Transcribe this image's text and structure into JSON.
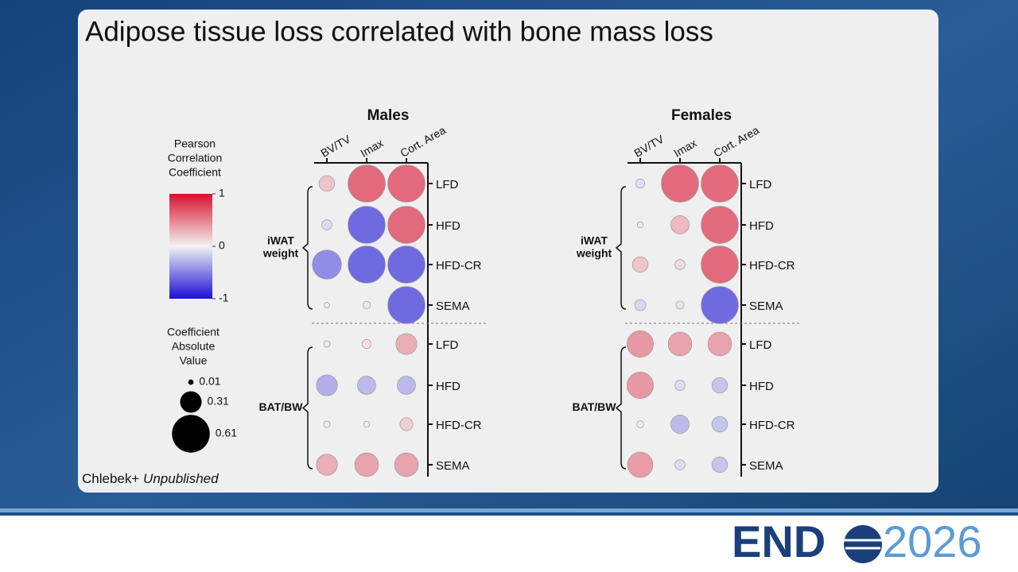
{
  "title": "Adipose tissue loss correlated with bone mass loss",
  "footnote": {
    "author": "Chlebek+",
    "status": "Unpublished"
  },
  "logo": {
    "left": "END",
    "right": "2026"
  },
  "legend": {
    "colorbar": {
      "title": [
        "Pearson",
        "Correlation",
        "Coefficient"
      ],
      "lim": [
        -1,
        1
      ],
      "ticks": [
        1,
        0,
        -1
      ],
      "colors": [
        "#1a0fd6",
        "#f2f2f2",
        "#d8102e"
      ]
    },
    "size": {
      "title": [
        "Coefficient",
        "Absolute",
        "Value"
      ],
      "values": [
        0.01,
        0.31,
        0.61
      ]
    }
  },
  "chart_data": [
    {
      "type": "bubble",
      "title": "Males",
      "columns": [
        "BV/TV",
        "Imax",
        "Cort. Area"
      ],
      "rows": [
        "LFD",
        "HFD",
        "HFD-CR",
        "SEMA"
      ],
      "groups": [
        {
          "label": [
            "iWAT",
            "weight"
          ],
          "values": [
            [
              0.2,
              0.6,
              0.6
            ],
            [
              -0.1,
              -0.6,
              0.6
            ],
            [
              -0.45,
              -0.6,
              -0.6
            ],
            [
              -0.01,
              -0.05,
              -0.6
            ]
          ]
        },
        {
          "label": [
            "BAT/BW"
          ],
          "values": [
            [
              0.03,
              0.08,
              0.3
            ],
            [
              -0.3,
              -0.25,
              -0.25
            ],
            [
              0.03,
              0.02,
              0.15
            ],
            [
              0.3,
              0.35,
              0.35
            ]
          ]
        }
      ]
    },
    {
      "type": "bubble",
      "title": "Females",
      "columns": [
        "BV/TV",
        "Imax",
        "Cort. Area"
      ],
      "rows": [
        "LFD",
        "HFD",
        "HFD-CR",
        "SEMA"
      ],
      "groups": [
        {
          "label": [
            "iWAT",
            "weight"
          ],
          "values": [
            [
              -0.08,
              0.6,
              0.6
            ],
            [
              0.02,
              0.25,
              0.6
            ],
            [
              0.2,
              0.1,
              0.6
            ],
            [
              -0.12,
              -0.06,
              -0.6
            ]
          ]
        },
        {
          "label": [
            "BAT/BW"
          ],
          "values": [
            [
              0.4,
              0.35,
              0.35
            ],
            [
              0.4,
              -0.1,
              -0.2
            ],
            [
              0.04,
              -0.25,
              -0.2
            ],
            [
              0.38,
              -0.1,
              -0.2
            ]
          ]
        }
      ]
    }
  ]
}
